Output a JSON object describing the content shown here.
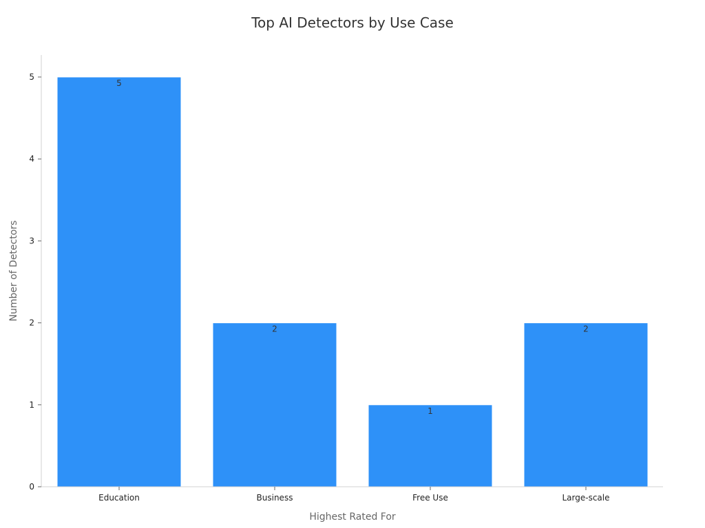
{
  "chart_data": {
    "type": "bar",
    "title": "Top AI Detectors by Use Case",
    "xlabel": "Highest Rated For",
    "ylabel": "Number of Detectors",
    "categories": [
      "Education",
      "Business",
      "Free Use",
      "Large-scale"
    ],
    "values": [
      5,
      2,
      1,
      2
    ],
    "ylim": [
      0,
      5
    ],
    "yticks": [
      0,
      1,
      2,
      3,
      4,
      5
    ],
    "grid": false,
    "data_labels": true,
    "bar_color": "#2e91f8"
  }
}
